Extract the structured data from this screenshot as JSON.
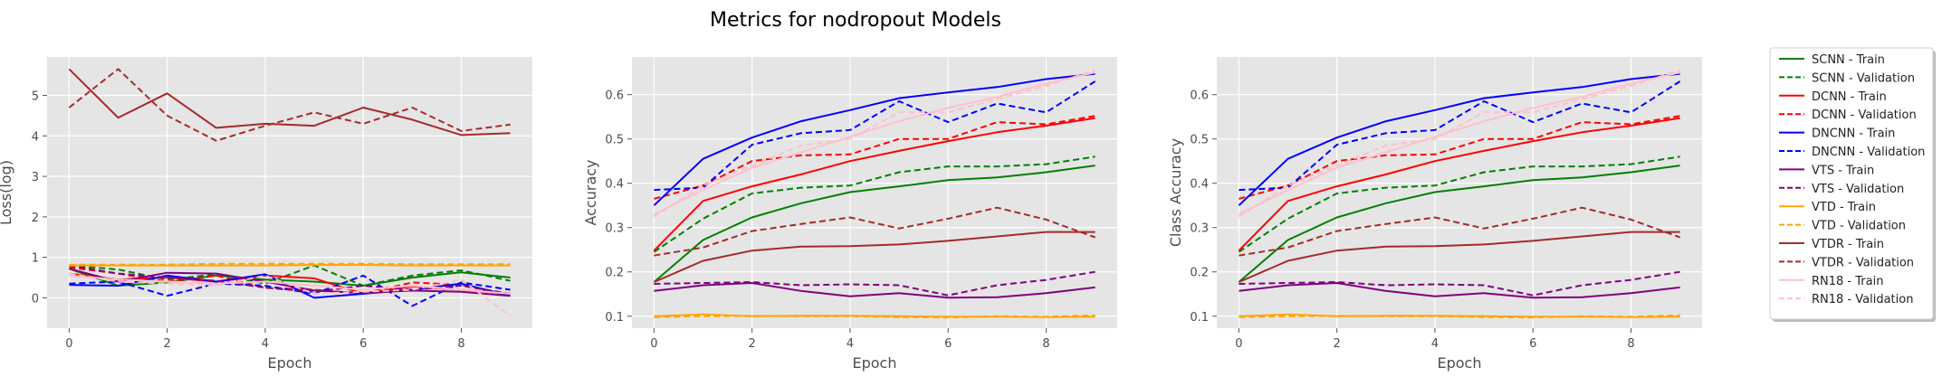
{
  "figure": {
    "title": "Metrics for nodropout Models"
  },
  "legend": {
    "placement": "right",
    "entries": [
      {
        "label": "SCNN - Train",
        "color": "#008000",
        "style": "solid"
      },
      {
        "label": "SCNN - Validation",
        "color": "#008000",
        "style": "dashed"
      },
      {
        "label": "DCNN - Train",
        "color": "#ff0000",
        "style": "solid"
      },
      {
        "label": "DCNN - Validation",
        "color": "#ff0000",
        "style": "dashed"
      },
      {
        "label": "DNCNN - Train",
        "color": "#0000ff",
        "style": "solid"
      },
      {
        "label": "DNCNN - Validation",
        "color": "#0000ff",
        "style": "dashed"
      },
      {
        "label": "VTS - Train",
        "color": "#800080",
        "style": "solid"
      },
      {
        "label": "VTS - Validation",
        "color": "#800080",
        "style": "dashed"
      },
      {
        "label": "VTD - Train",
        "color": "#ffa500",
        "style": "solid"
      },
      {
        "label": "VTD - Validation",
        "color": "#ffa500",
        "style": "dashed"
      },
      {
        "label": "VTDR - Train",
        "color": "#a52a2a",
        "style": "solid"
      },
      {
        "label": "VTDR - Validation",
        "color": "#a52a2a",
        "style": "dashed"
      },
      {
        "label": "RN18 - Train",
        "color": "#ffc0cb",
        "style": "solid"
      },
      {
        "label": "RN18 - Validation",
        "color": "#ffc0cb",
        "style": "dashed"
      }
    ]
  },
  "chart_data": [
    {
      "type": "line",
      "xlabel": "Epoch",
      "ylabel": "Loss(log)",
      "x": [
        0,
        1,
        2,
        3,
        4,
        5,
        6,
        7,
        8,
        9
      ],
      "xlim": [
        -0.45,
        9.45
      ],
      "ylim": [
        -0.75,
        5.95
      ],
      "xticks": [
        0,
        2,
        4,
        6,
        8
      ],
      "yticks": [
        0,
        1,
        2,
        3,
        4,
        5
      ],
      "grid": true,
      "series": [
        {
          "name": "SCNN - Train",
          "values": [
            0.72,
            0.3,
            0.38,
            0.55,
            0.45,
            0.4,
            0.3,
            0.5,
            0.63,
            0.5
          ]
        },
        {
          "name": "SCNN - Validation",
          "values": [
            0.8,
            0.7,
            0.45,
            0.58,
            0.35,
            0.8,
            0.3,
            0.55,
            0.68,
            0.42
          ]
        },
        {
          "name": "DCNN - Train",
          "values": [
            0.6,
            0.45,
            0.5,
            0.4,
            0.55,
            0.48,
            0.1,
            0.28,
            0.2,
            0.1
          ]
        },
        {
          "name": "DCNN - Validation",
          "values": [
            0.75,
            0.6,
            0.4,
            0.55,
            0.25,
            0.2,
            0.1,
            0.38,
            0.32,
            0.05
          ]
        },
        {
          "name": "DNCNN - Train",
          "values": [
            0.32,
            0.3,
            0.55,
            0.4,
            0.58,
            0.0,
            0.1,
            0.2,
            0.35,
            0.05
          ]
        },
        {
          "name": "DNCNN - Validation",
          "values": [
            0.35,
            0.4,
            0.05,
            0.35,
            0.3,
            0.1,
            0.55,
            -0.2,
            0.38,
            0.2
          ]
        },
        {
          "name": "VTS - Train",
          "values": [
            0.72,
            0.4,
            0.62,
            0.6,
            0.4,
            0.18,
            0.12,
            0.18,
            0.15,
            0.05
          ]
        },
        {
          "name": "VTS - Validation",
          "values": [
            0.8,
            0.6,
            0.5,
            0.42,
            0.25,
            0.15,
            0.3,
            0.2,
            0.3,
            0.1
          ]
        },
        {
          "name": "VTD - Train",
          "values": [
            0.8,
            0.8,
            0.8,
            0.8,
            0.8,
            0.81,
            0.81,
            0.8,
            0.8,
            0.8
          ]
        },
        {
          "name": "VTD - Validation",
          "values": [
            0.82,
            0.82,
            0.82,
            0.84,
            0.84,
            0.84,
            0.84,
            0.83,
            0.83,
            0.83
          ]
        },
        {
          "name": "VTDR - Train",
          "values": [
            5.65,
            4.45,
            5.05,
            4.2,
            4.3,
            4.25,
            4.7,
            4.4,
            4.02,
            4.07
          ]
        },
        {
          "name": "VTDR - Validation",
          "values": [
            4.7,
            5.65,
            4.5,
            3.88,
            4.25,
            4.58,
            4.3,
            4.7,
            4.12,
            4.28
          ]
        },
        {
          "name": "RN18 - Train",
          "values": [
            0.55,
            0.45,
            0.4,
            0.35,
            0.4,
            0.3,
            0.2,
            0.3,
            0.2,
            0.1
          ]
        },
        {
          "name": "RN18 - Validation",
          "values": [
            0.6,
            0.4,
            0.35,
            0.3,
            0.55,
            0.1,
            0.15,
            0.2,
            0.45,
            -0.45
          ]
        }
      ]
    },
    {
      "type": "line",
      "xlabel": "Epoch",
      "ylabel": "Accuracy",
      "x": [
        0,
        1,
        2,
        3,
        4,
        5,
        6,
        7,
        8,
        9
      ],
      "xlim": [
        -0.45,
        9.45
      ],
      "ylim": [
        0.073,
        0.685
      ],
      "xticks": [
        0,
        2,
        4,
        6,
        8
      ],
      "yticks": [
        0.1,
        0.2,
        0.3,
        0.4,
        0.5,
        0.6
      ],
      "grid": true,
      "series": [
        {
          "name": "SCNN - Train",
          "values": [
            0.177,
            0.272,
            0.323,
            0.355,
            0.38,
            0.393,
            0.407,
            0.413,
            0.425,
            0.44
          ]
        },
        {
          "name": "SCNN - Validation",
          "values": [
            0.245,
            0.32,
            0.377,
            0.39,
            0.395,
            0.425,
            0.438,
            0.438,
            0.443,
            0.46
          ]
        },
        {
          "name": "DCNN - Train",
          "values": [
            0.248,
            0.36,
            0.393,
            0.42,
            0.45,
            0.473,
            0.495,
            0.515,
            0.53,
            0.547
          ]
        },
        {
          "name": "DCNN - Validation",
          "values": [
            0.365,
            0.395,
            0.45,
            0.463,
            0.465,
            0.5,
            0.5,
            0.538,
            0.533,
            0.552
          ]
        },
        {
          "name": "DNCNN - Train",
          "values": [
            0.35,
            0.455,
            0.503,
            0.54,
            0.565,
            0.592,
            0.605,
            0.617,
            0.635,
            0.647
          ]
        },
        {
          "name": "DNCNN - Validation",
          "values": [
            0.385,
            0.39,
            0.487,
            0.513,
            0.52,
            0.585,
            0.538,
            0.58,
            0.56,
            0.63
          ]
        },
        {
          "name": "VTS - Train",
          "values": [
            0.157,
            0.17,
            0.175,
            0.157,
            0.145,
            0.152,
            0.142,
            0.143,
            0.152,
            0.165
          ]
        },
        {
          "name": "VTS - Validation",
          "values": [
            0.173,
            0.175,
            0.177,
            0.17,
            0.172,
            0.17,
            0.147,
            0.17,
            0.182,
            0.2
          ]
        },
        {
          "name": "VTD - Train",
          "values": [
            0.1,
            0.104,
            0.1,
            0.101,
            0.101,
            0.1,
            0.099,
            0.099,
            0.098,
            0.099
          ]
        },
        {
          "name": "VTD - Validation",
          "values": [
            0.098,
            0.1,
            0.101,
            0.1,
            0.1,
            0.098,
            0.097,
            0.1,
            0.099,
            0.102
          ]
        },
        {
          "name": "VTDR - Train",
          "values": [
            0.177,
            0.225,
            0.248,
            0.257,
            0.258,
            0.262,
            0.27,
            0.28,
            0.29,
            0.29
          ]
        },
        {
          "name": "VTDR - Validation",
          "values": [
            0.237,
            0.255,
            0.292,
            0.308,
            0.323,
            0.298,
            0.32,
            0.345,
            0.318,
            0.278
          ]
        },
        {
          "name": "RN18 - Train",
          "values": [
            0.33,
            0.385,
            0.435,
            0.47,
            0.505,
            0.54,
            0.57,
            0.595,
            0.625,
            0.65
          ]
        },
        {
          "name": "RN18 - Validation",
          "values": [
            0.325,
            0.395,
            0.44,
            0.485,
            0.5,
            0.56,
            0.56,
            0.59,
            0.62,
            0.655
          ]
        }
      ]
    },
    {
      "type": "line",
      "xlabel": "Epoch",
      "ylabel": "Class Accuracy",
      "x": [
        0,
        1,
        2,
        3,
        4,
        5,
        6,
        7,
        8,
        9
      ],
      "xlim": [
        -0.45,
        9.45
      ],
      "ylim": [
        0.073,
        0.685
      ],
      "xticks": [
        0,
        2,
        4,
        6,
        8
      ],
      "yticks": [
        0.1,
        0.2,
        0.3,
        0.4,
        0.5,
        0.6
      ],
      "grid": true,
      "series": [
        {
          "name": "SCNN - Train",
          "values": [
            0.177,
            0.272,
            0.323,
            0.355,
            0.38,
            0.393,
            0.407,
            0.413,
            0.425,
            0.44
          ]
        },
        {
          "name": "SCNN - Validation",
          "values": [
            0.245,
            0.32,
            0.377,
            0.39,
            0.395,
            0.425,
            0.438,
            0.438,
            0.443,
            0.46
          ]
        },
        {
          "name": "DCNN - Train",
          "values": [
            0.248,
            0.36,
            0.393,
            0.42,
            0.45,
            0.473,
            0.495,
            0.515,
            0.53,
            0.547
          ]
        },
        {
          "name": "DCNN - Validation",
          "values": [
            0.365,
            0.395,
            0.45,
            0.463,
            0.465,
            0.5,
            0.5,
            0.538,
            0.533,
            0.552
          ]
        },
        {
          "name": "DNCNN - Train",
          "values": [
            0.35,
            0.455,
            0.503,
            0.54,
            0.565,
            0.592,
            0.605,
            0.617,
            0.635,
            0.647
          ]
        },
        {
          "name": "DNCNN - Validation",
          "values": [
            0.385,
            0.39,
            0.487,
            0.513,
            0.52,
            0.585,
            0.538,
            0.58,
            0.56,
            0.63
          ]
        },
        {
          "name": "VTS - Train",
          "values": [
            0.157,
            0.17,
            0.175,
            0.157,
            0.145,
            0.152,
            0.142,
            0.143,
            0.152,
            0.165
          ]
        },
        {
          "name": "VTS - Validation",
          "values": [
            0.173,
            0.175,
            0.177,
            0.17,
            0.172,
            0.17,
            0.147,
            0.17,
            0.182,
            0.2
          ]
        },
        {
          "name": "VTD - Train",
          "values": [
            0.1,
            0.104,
            0.1,
            0.101,
            0.101,
            0.1,
            0.099,
            0.099,
            0.098,
            0.099
          ]
        },
        {
          "name": "VTD - Validation",
          "values": [
            0.098,
            0.1,
            0.101,
            0.1,
            0.1,
            0.098,
            0.097,
            0.1,
            0.099,
            0.102
          ]
        },
        {
          "name": "VTDR - Train",
          "values": [
            0.177,
            0.225,
            0.248,
            0.257,
            0.258,
            0.262,
            0.27,
            0.28,
            0.29,
            0.29
          ]
        },
        {
          "name": "VTDR - Validation",
          "values": [
            0.237,
            0.255,
            0.292,
            0.308,
            0.323,
            0.298,
            0.32,
            0.345,
            0.318,
            0.278
          ]
        },
        {
          "name": "RN18 - Train",
          "values": [
            0.33,
            0.385,
            0.435,
            0.47,
            0.505,
            0.54,
            0.57,
            0.595,
            0.625,
            0.65
          ]
        },
        {
          "name": "RN18 - Validation",
          "values": [
            0.325,
            0.395,
            0.44,
            0.485,
            0.5,
            0.56,
            0.56,
            0.59,
            0.62,
            0.655
          ]
        }
      ]
    }
  ]
}
